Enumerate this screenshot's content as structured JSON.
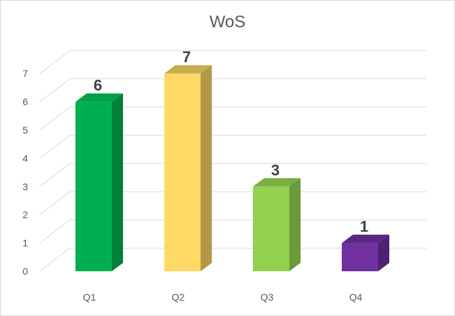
{
  "chart_data": {
    "type": "bar",
    "title": "WoS",
    "categories": [
      "Q1",
      "Q2",
      "Q3",
      "Q4"
    ],
    "values": [
      6,
      7,
      3,
      1
    ],
    "data_labels": [
      "6",
      "7",
      "3",
      "1"
    ],
    "y_ticks": [
      "0",
      "1",
      "2",
      "3",
      "4",
      "5",
      "6",
      "7"
    ],
    "ylim": [
      0,
      7
    ],
    "grid": true,
    "style": "3d-column",
    "colors": [
      {
        "front": "#00b050",
        "side": "#00803a",
        "top": "#00a047"
      },
      {
        "front": "#ffd966",
        "side": "#b39845",
        "top": "#c9ab50"
      },
      {
        "front": "#92d050",
        "side": "#6a9a3a",
        "top": "#7aad42"
      },
      {
        "front": "#7030a0",
        "side": "#4e2270",
        "top": "#5a2882"
      }
    ],
    "gridline_color": "#d9d9d9"
  }
}
